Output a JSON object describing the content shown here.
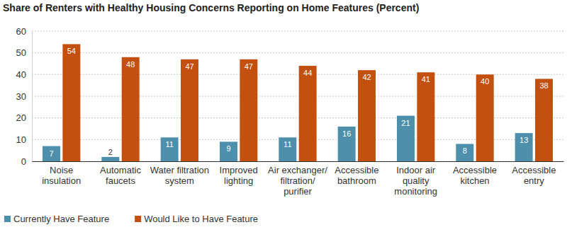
{
  "chart_data": {
    "type": "bar",
    "title": "Share of Renters with Healthy Housing Concerns Reporting on Home Features (Percent)",
    "categories": [
      "Noise\ninsulation",
      "Automatic\nfaucets",
      "Water filtration\nsystem",
      "Improved\nlighting",
      "Air exchanger/\nfiltration/\npurifier",
      "Accessible\nbathroom",
      "Indoor air\nquality\nmonitoring",
      "Accessible\nkitchen",
      "Accessible\nentry"
    ],
    "series": [
      {
        "name": "Currently Have Feature",
        "color": "#4e8fab",
        "values": [
          7,
          2,
          11,
          9,
          11,
          16,
          21,
          8,
          13
        ]
      },
      {
        "name": "Would Like to Have Feature",
        "color": "#c4500f",
        "values": [
          54,
          48,
          47,
          47,
          44,
          42,
          41,
          40,
          38
        ]
      }
    ],
    "ylim": [
      0,
      60
    ],
    "yticks": [
      0,
      10,
      20,
      30,
      40,
      50,
      60
    ],
    "grid": true,
    "data_labels": true,
    "legend": "bottom"
  }
}
